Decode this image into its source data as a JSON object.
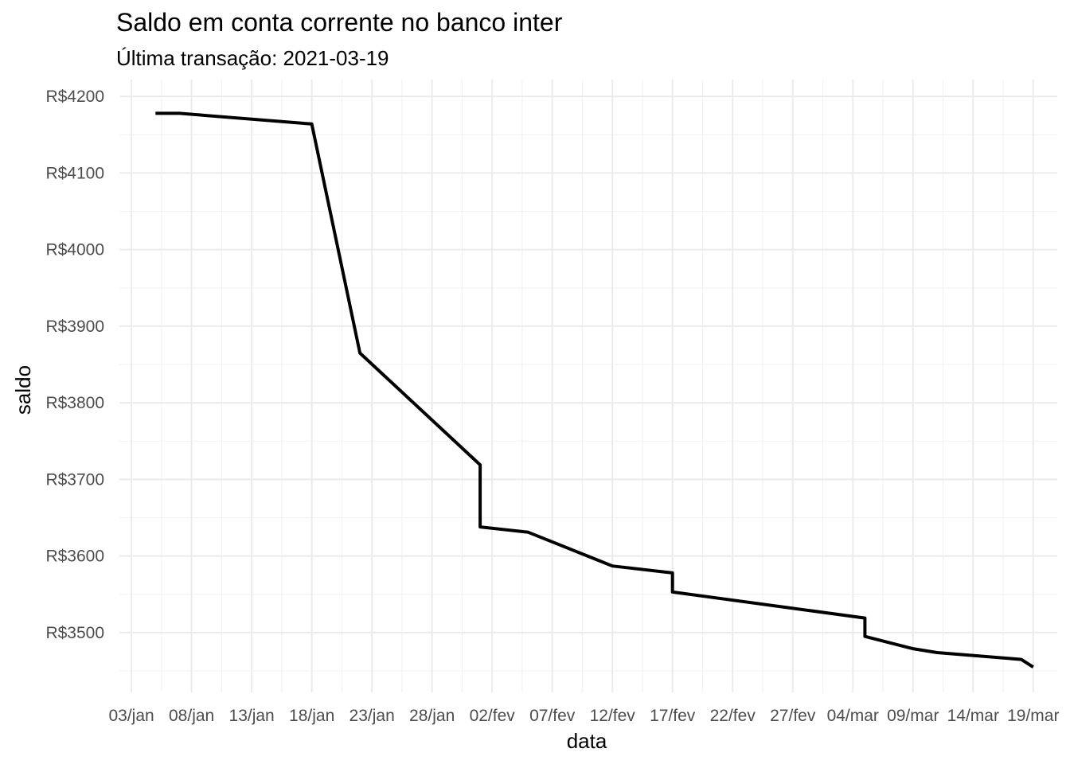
{
  "chart_data": {
    "type": "line",
    "title": "Saldo em conta corrente no banco inter",
    "subtitle": "Última transação: 2021-03-19",
    "xlabel": "data",
    "ylabel": "saldo",
    "xlim": [
      "2021-01-02",
      "2021-03-21"
    ],
    "ylim": [
      3422,
      4222
    ],
    "x_ticks": [
      {
        "date": "2021-01-03",
        "label": "03/jan"
      },
      {
        "date": "2021-01-08",
        "label": "08/jan"
      },
      {
        "date": "2021-01-13",
        "label": "13/jan"
      },
      {
        "date": "2021-01-18",
        "label": "18/jan"
      },
      {
        "date": "2021-01-23",
        "label": "23/jan"
      },
      {
        "date": "2021-01-28",
        "label": "28/jan"
      },
      {
        "date": "2021-02-02",
        "label": "02/fev"
      },
      {
        "date": "2021-02-07",
        "label": "07/fev"
      },
      {
        "date": "2021-02-12",
        "label": "12/fev"
      },
      {
        "date": "2021-02-17",
        "label": "17/fev"
      },
      {
        "date": "2021-02-22",
        "label": "22/fev"
      },
      {
        "date": "2021-02-27",
        "label": "27/fev"
      },
      {
        "date": "2021-03-04",
        "label": "04/mar"
      },
      {
        "date": "2021-03-09",
        "label": "09/mar"
      },
      {
        "date": "2021-03-14",
        "label": "14/mar"
      },
      {
        "date": "2021-03-19",
        "label": "19/mar"
      }
    ],
    "y_ticks": [
      {
        "value": 3500,
        "label": "R$3500"
      },
      {
        "value": 3600,
        "label": "R$3600"
      },
      {
        "value": 3700,
        "label": "R$3700"
      },
      {
        "value": 3800,
        "label": "R$3800"
      },
      {
        "value": 3900,
        "label": "R$3900"
      },
      {
        "value": 4000,
        "label": "R$4000"
      },
      {
        "value": 4100,
        "label": "R$4100"
      },
      {
        "value": 4200,
        "label": "R$4200"
      }
    ],
    "grid": true,
    "series": [
      {
        "color": "#000000",
        "points": [
          {
            "x": "2021-01-05",
            "y": 4178
          },
          {
            "x": "2021-01-07",
            "y": 4178
          },
          {
            "x": "2021-01-18",
            "y": 4164
          },
          {
            "x": "2021-01-22",
            "y": 3865
          },
          {
            "x": "2021-02-01",
            "y": 3719
          },
          {
            "x": "2021-02-01",
            "y": 3638
          },
          {
            "x": "2021-02-05",
            "y": 3631
          },
          {
            "x": "2021-02-12",
            "y": 3587
          },
          {
            "x": "2021-02-17",
            "y": 3578
          },
          {
            "x": "2021-02-17",
            "y": 3553
          },
          {
            "x": "2021-03-05",
            "y": 3519
          },
          {
            "x": "2021-03-05",
            "y": 3495
          },
          {
            "x": "2021-03-09",
            "y": 3479
          },
          {
            "x": "2021-03-11",
            "y": 3474
          },
          {
            "x": "2021-03-18",
            "y": 3465
          },
          {
            "x": "2021-03-19",
            "y": 3455
          }
        ]
      }
    ]
  }
}
